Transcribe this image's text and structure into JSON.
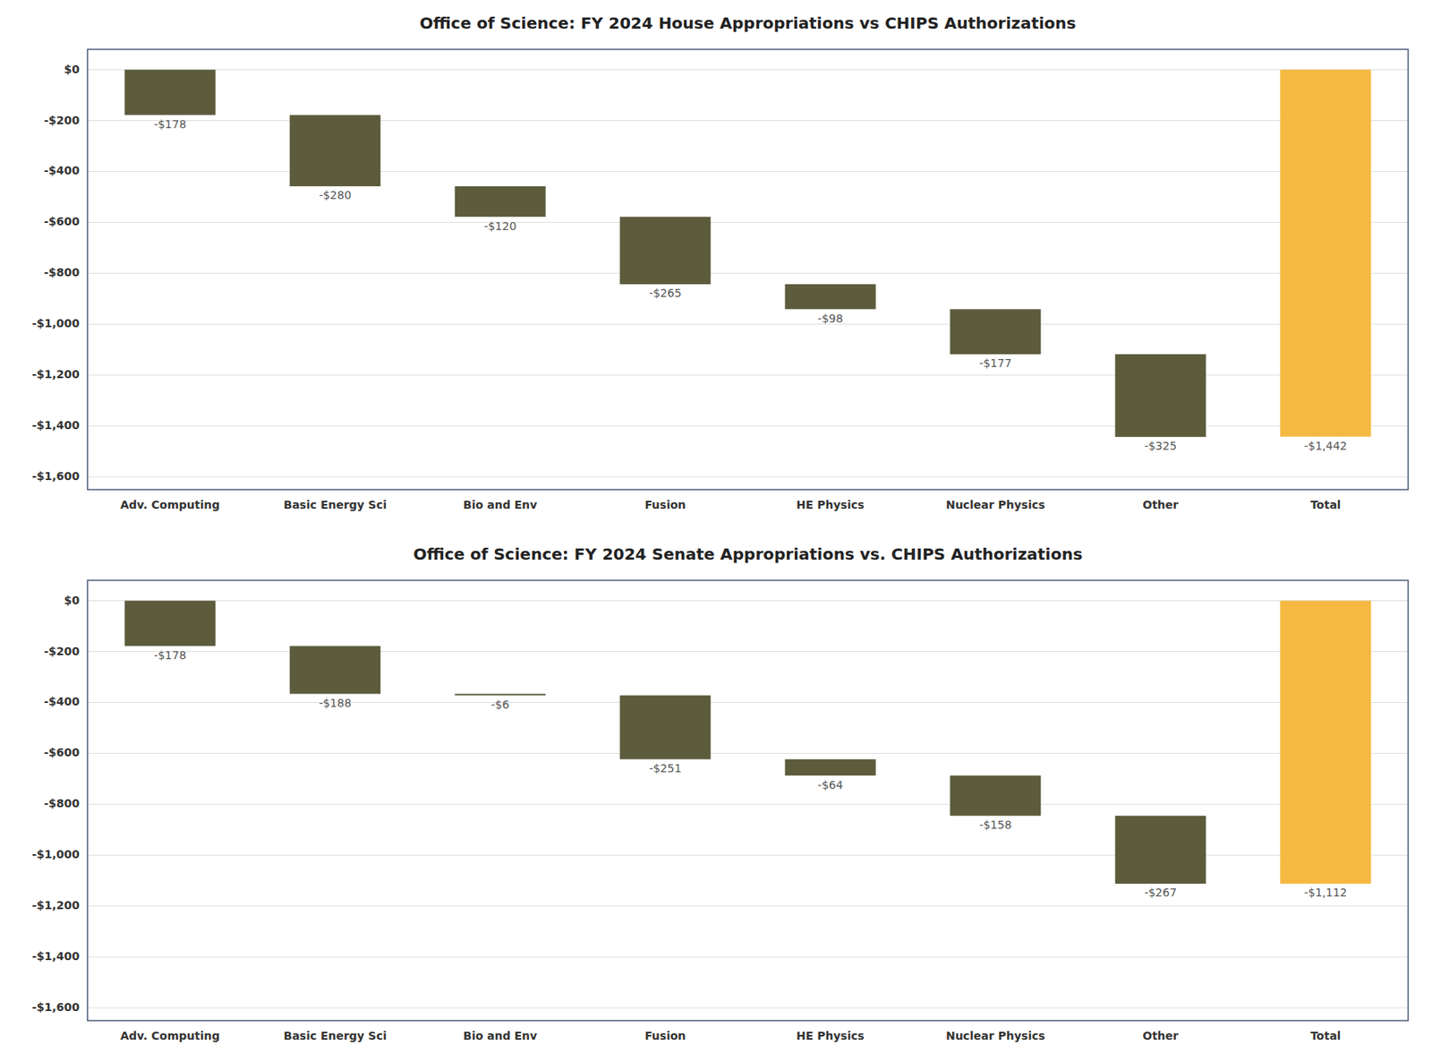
{
  "chart_data": [
    {
      "type": "waterfall",
      "title": "Office of Science: FY 2024 House Appropriations vs CHIPS Authorizations",
      "categories": [
        "Adv. Computing",
        "Basic Energy Sci",
        "Bio and Env",
        "Fusion",
        "HE Physics",
        "Nuclear Physics",
        "Other",
        "Total"
      ],
      "values": [
        -178,
        -280,
        -120,
        -265,
        -98,
        -177,
        -325,
        -1442
      ],
      "value_labels": [
        "-$178",
        "-$280",
        "-$120",
        "-$265",
        "-$98",
        "-$177",
        "-$325",
        "-$1,442"
      ],
      "colors": [
        "#5c5c3d",
        "#5c5c3d",
        "#5c5c3d",
        "#5c5c3d",
        "#5c5c3d",
        "#5c5c3d",
        "#5c5c3d",
        "#f5b942"
      ],
      "ylim": [
        -1650,
        80
      ],
      "yticks": [
        {
          "value": 0,
          "label": "$0"
        },
        {
          "value": -200,
          "label": "-$200"
        },
        {
          "value": -400,
          "label": "-$400"
        },
        {
          "value": -600,
          "label": "-$600"
        },
        {
          "value": -800,
          "label": "-$800"
        },
        {
          "value": -1000,
          "label": "-$1,000"
        },
        {
          "value": -1200,
          "label": "-$1,200"
        },
        {
          "value": -1400,
          "label": "-$1,400"
        },
        {
          "value": -1600,
          "label": "-$1,600"
        }
      ],
      "grid": true,
      "data_labels": true
    },
    {
      "type": "waterfall",
      "title": "Office of Science: FY 2024 Senate Appropriations vs. CHIPS Authorizations",
      "categories": [
        "Adv. Computing",
        "Basic Energy Sci",
        "Bio and Env",
        "Fusion",
        "HE Physics",
        "Nuclear Physics",
        "Other",
        "Total"
      ],
      "values": [
        -178,
        -188,
        -6,
        -251,
        -64,
        -158,
        -267,
        -1112
      ],
      "value_labels": [
        "-$178",
        "-$188",
        "-$6",
        "-$251",
        "-$64",
        "-$158",
        "-$267",
        "-$1,112"
      ],
      "colors": [
        "#5c5c3d",
        "#5c5c3d",
        "#5c5c3d",
        "#5c5c3d",
        "#5c5c3d",
        "#5c5c3d",
        "#5c5c3d",
        "#f5b942"
      ],
      "ylim": [
        -1650,
        80
      ],
      "yticks": [
        {
          "value": 0,
          "label": "$0"
        },
        {
          "value": -200,
          "label": "-$200"
        },
        {
          "value": -400,
          "label": "-$400"
        },
        {
          "value": -600,
          "label": "-$600"
        },
        {
          "value": -800,
          "label": "-$800"
        },
        {
          "value": -1000,
          "label": "-$1,000"
        },
        {
          "value": -1200,
          "label": "-$1,200"
        },
        {
          "value": -1400,
          "label": "-$1,400"
        },
        {
          "value": -1600,
          "label": "-$1,600"
        }
      ],
      "grid": true,
      "data_labels": true
    }
  ]
}
